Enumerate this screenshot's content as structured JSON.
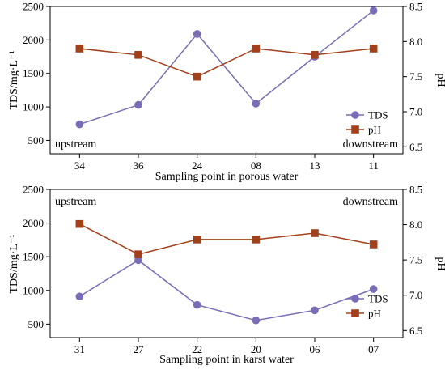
{
  "colors": {
    "tds": "#7b6cb8",
    "ph": "#a3401c",
    "axis": "#000000"
  },
  "chart_data": [
    {
      "type": "line",
      "xlabel": "Sampling point in porous water",
      "ylabel_left": "TDS/mg·L⁻¹",
      "ylabel_right": "pH",
      "categories": [
        "34",
        "36",
        "24",
        "08",
        "13",
        "11"
      ],
      "left_axis": {
        "min": 300,
        "max": 2500,
        "ticks": [
          500,
          1000,
          1500,
          2000,
          2500
        ]
      },
      "right_axis": {
        "min": 6.4,
        "max": 8.5,
        "ticks": [
          6.5,
          7.0,
          7.5,
          8.0,
          8.5
        ],
        "tick_labels": [
          "6.5",
          "7.0",
          "7.5",
          "8.0",
          "8.5"
        ]
      },
      "series": [
        {
          "name": "TDS",
          "axis": "left",
          "marker": "circle",
          "values": [
            740,
            1030,
            2090,
            1050,
            1750,
            2440
          ]
        },
        {
          "name": "pH",
          "axis": "right",
          "marker": "square",
          "values": [
            7.9,
            7.81,
            7.5,
            7.9,
            7.81,
            7.9
          ]
        }
      ],
      "annotations": {
        "start": "upstream",
        "end": "downstream",
        "placement": "bottom"
      },
      "legend": {
        "position": "bottom-right"
      }
    },
    {
      "type": "line",
      "xlabel": "Sampling point in karst water",
      "ylabel_left": "TDS/mg·L⁻¹",
      "ylabel_right": "pH",
      "categories": [
        "31",
        "27",
        "22",
        "20",
        "06",
        "07"
      ],
      "left_axis": {
        "min": 300,
        "max": 2500,
        "ticks": [
          500,
          1000,
          1500,
          2000,
          2500
        ]
      },
      "right_axis": {
        "min": 6.4,
        "max": 8.5,
        "ticks": [
          6.5,
          7.0,
          7.5,
          8.0,
          8.5
        ],
        "tick_labels": [
          "6.5",
          "7.0",
          "7.5",
          "8.0",
          "8.5"
        ]
      },
      "series": [
        {
          "name": "TDS",
          "axis": "left",
          "marker": "circle",
          "values": [
            910,
            1450,
            785,
            555,
            705,
            1020
          ]
        },
        {
          "name": "pH",
          "axis": "right",
          "marker": "square",
          "values": [
            8.01,
            7.58,
            7.79,
            7.79,
            7.88,
            7.72
          ]
        }
      ],
      "annotations": {
        "start": "upstream",
        "end": "downstream",
        "placement": "top"
      },
      "legend": {
        "position": "bottom-right"
      }
    }
  ]
}
